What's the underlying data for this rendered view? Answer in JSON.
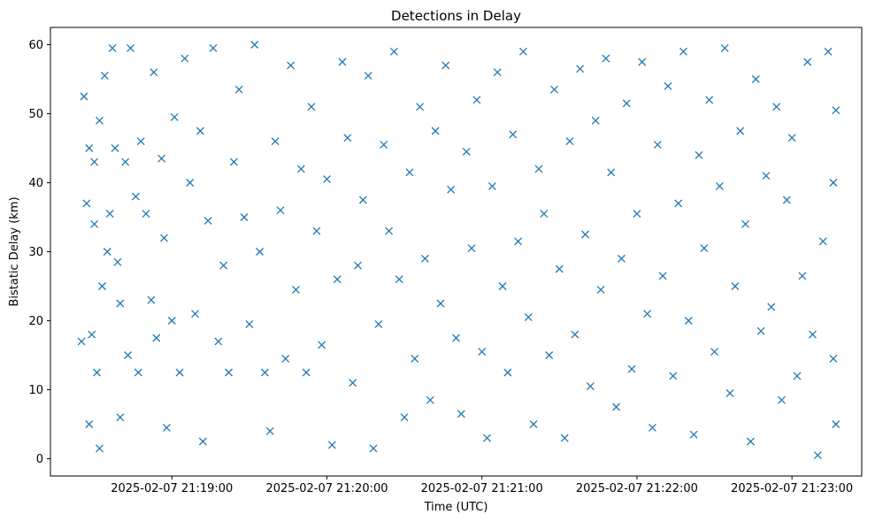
{
  "chart_data": {
    "type": "scatter",
    "title": "Detections in Delay",
    "xlabel": "Time (UTC)",
    "ylabel": "Bistatic Delay (km)",
    "x_is_datetime": true,
    "xlim": [
      "2025-02-07 21:18:13",
      "2025-02-07 21:23:27"
    ],
    "ylim": [
      -2.5,
      62.5
    ],
    "xticks": [
      "2025-02-07 21:19:00",
      "2025-02-07 21:20:00",
      "2025-02-07 21:21:00",
      "2025-02-07 21:22:00",
      "2025-02-07 21:23:00"
    ],
    "yticks": [
      0,
      10,
      20,
      30,
      40,
      50,
      60
    ],
    "marker": "x",
    "color": "#1f77b4",
    "grid": false,
    "legend": "none",
    "series": [
      {
        "points": [
          [
            "2025-02-07 21:18:25",
            17.0
          ],
          [
            "2025-02-07 21:18:26",
            52.5
          ],
          [
            "2025-02-07 21:18:27",
            37.0
          ],
          [
            "2025-02-07 21:18:28",
            45.0
          ],
          [
            "2025-02-07 21:18:28",
            5.0
          ],
          [
            "2025-02-07 21:18:29",
            18.0
          ],
          [
            "2025-02-07 21:18:30",
            43.0
          ],
          [
            "2025-02-07 21:18:30",
            34.0
          ],
          [
            "2025-02-07 21:18:31",
            12.5
          ],
          [
            "2025-02-07 21:18:32",
            49.0
          ],
          [
            "2025-02-07 21:18:32",
            1.5
          ],
          [
            "2025-02-07 21:18:33",
            25.0
          ],
          [
            "2025-02-07 21:18:34",
            55.5
          ],
          [
            "2025-02-07 21:18:35",
            30.0
          ],
          [
            "2025-02-07 21:18:36",
            35.5
          ],
          [
            "2025-02-07 21:18:37",
            59.5
          ],
          [
            "2025-02-07 21:18:38",
            45.0
          ],
          [
            "2025-02-07 21:18:39",
            28.5
          ],
          [
            "2025-02-07 21:18:40",
            22.5
          ],
          [
            "2025-02-07 21:18:40",
            6.0
          ],
          [
            "2025-02-07 21:18:42",
            43.0
          ],
          [
            "2025-02-07 21:18:43",
            15.0
          ],
          [
            "2025-02-07 21:18:44",
            59.5
          ],
          [
            "2025-02-07 21:18:46",
            38.0
          ],
          [
            "2025-02-07 21:18:47",
            12.5
          ],
          [
            "2025-02-07 21:18:48",
            46.0
          ],
          [
            "2025-02-07 21:18:50",
            35.5
          ],
          [
            "2025-02-07 21:18:52",
            23.0
          ],
          [
            "2025-02-07 21:18:53",
            56.0
          ],
          [
            "2025-02-07 21:18:54",
            17.5
          ],
          [
            "2025-02-07 21:18:56",
            43.5
          ],
          [
            "2025-02-07 21:18:57",
            32.0
          ],
          [
            "2025-02-07 21:18:58",
            4.5
          ],
          [
            "2025-02-07 21:19:00",
            20.0
          ],
          [
            "2025-02-07 21:19:01",
            49.5
          ],
          [
            "2025-02-07 21:19:03",
            12.5
          ],
          [
            "2025-02-07 21:19:05",
            58.0
          ],
          [
            "2025-02-07 21:19:07",
            40.0
          ],
          [
            "2025-02-07 21:19:09",
            21.0
          ],
          [
            "2025-02-07 21:19:11",
            47.5
          ],
          [
            "2025-02-07 21:19:12",
            2.5
          ],
          [
            "2025-02-07 21:19:14",
            34.5
          ],
          [
            "2025-02-07 21:19:16",
            59.5
          ],
          [
            "2025-02-07 21:19:18",
            17.0
          ],
          [
            "2025-02-07 21:19:20",
            28.0
          ],
          [
            "2025-02-07 21:19:22",
            12.5
          ],
          [
            "2025-02-07 21:19:24",
            43.0
          ],
          [
            "2025-02-07 21:19:26",
            53.5
          ],
          [
            "2025-02-07 21:19:28",
            35.0
          ],
          [
            "2025-02-07 21:19:30",
            19.5
          ],
          [
            "2025-02-07 21:19:32",
            60.0
          ],
          [
            "2025-02-07 21:19:34",
            30.0
          ],
          [
            "2025-02-07 21:19:36",
            12.5
          ],
          [
            "2025-02-07 21:19:38",
            4.0
          ],
          [
            "2025-02-07 21:19:40",
            46.0
          ],
          [
            "2025-02-07 21:19:42",
            36.0
          ],
          [
            "2025-02-07 21:19:44",
            14.5
          ],
          [
            "2025-02-07 21:19:46",
            57.0
          ],
          [
            "2025-02-07 21:19:48",
            24.5
          ],
          [
            "2025-02-07 21:19:50",
            42.0
          ],
          [
            "2025-02-07 21:19:52",
            12.5
          ],
          [
            "2025-02-07 21:19:54",
            51.0
          ],
          [
            "2025-02-07 21:19:56",
            33.0
          ],
          [
            "2025-02-07 21:19:58",
            16.5
          ],
          [
            "2025-02-07 21:20:00",
            40.5
          ],
          [
            "2025-02-07 21:20:02",
            2.0
          ],
          [
            "2025-02-07 21:20:04",
            26.0
          ],
          [
            "2025-02-07 21:20:06",
            57.5
          ],
          [
            "2025-02-07 21:20:08",
            46.5
          ],
          [
            "2025-02-07 21:20:10",
            11.0
          ],
          [
            "2025-02-07 21:20:12",
            28.0
          ],
          [
            "2025-02-07 21:20:14",
            37.5
          ],
          [
            "2025-02-07 21:20:16",
            55.5
          ],
          [
            "2025-02-07 21:20:18",
            1.5
          ],
          [
            "2025-02-07 21:20:20",
            19.5
          ],
          [
            "2025-02-07 21:20:22",
            45.5
          ],
          [
            "2025-02-07 21:20:24",
            33.0
          ],
          [
            "2025-02-07 21:20:26",
            59.0
          ],
          [
            "2025-02-07 21:20:28",
            26.0
          ],
          [
            "2025-02-07 21:20:30",
            6.0
          ],
          [
            "2025-02-07 21:20:32",
            41.5
          ],
          [
            "2025-02-07 21:20:34",
            14.5
          ],
          [
            "2025-02-07 21:20:36",
            51.0
          ],
          [
            "2025-02-07 21:20:38",
            29.0
          ],
          [
            "2025-02-07 21:20:40",
            8.5
          ],
          [
            "2025-02-07 21:20:42",
            47.5
          ],
          [
            "2025-02-07 21:20:44",
            22.5
          ],
          [
            "2025-02-07 21:20:46",
            57.0
          ],
          [
            "2025-02-07 21:20:48",
            39.0
          ],
          [
            "2025-02-07 21:20:50",
            17.5
          ],
          [
            "2025-02-07 21:20:52",
            6.5
          ],
          [
            "2025-02-07 21:20:54",
            44.5
          ],
          [
            "2025-02-07 21:20:56",
            30.5
          ],
          [
            "2025-02-07 21:20:58",
            52.0
          ],
          [
            "2025-02-07 21:21:00",
            15.5
          ],
          [
            "2025-02-07 21:21:02",
            3.0
          ],
          [
            "2025-02-07 21:21:04",
            39.5
          ],
          [
            "2025-02-07 21:21:06",
            56.0
          ],
          [
            "2025-02-07 21:21:08",
            25.0
          ],
          [
            "2025-02-07 21:21:10",
            12.5
          ],
          [
            "2025-02-07 21:21:12",
            47.0
          ],
          [
            "2025-02-07 21:21:14",
            31.5
          ],
          [
            "2025-02-07 21:21:16",
            59.0
          ],
          [
            "2025-02-07 21:21:18",
            20.5
          ],
          [
            "2025-02-07 21:21:20",
            5.0
          ],
          [
            "2025-02-07 21:21:22",
            42.0
          ],
          [
            "2025-02-07 21:21:24",
            35.5
          ],
          [
            "2025-02-07 21:21:26",
            15.0
          ],
          [
            "2025-02-07 21:21:28",
            53.5
          ],
          [
            "2025-02-07 21:21:30",
            27.5
          ],
          [
            "2025-02-07 21:21:32",
            3.0
          ],
          [
            "2025-02-07 21:21:34",
            46.0
          ],
          [
            "2025-02-07 21:21:36",
            18.0
          ],
          [
            "2025-02-07 21:21:38",
            56.5
          ],
          [
            "2025-02-07 21:21:40",
            32.5
          ],
          [
            "2025-02-07 21:21:42",
            10.5
          ],
          [
            "2025-02-07 21:21:44",
            49.0
          ],
          [
            "2025-02-07 21:21:46",
            24.5
          ],
          [
            "2025-02-07 21:21:48",
            58.0
          ],
          [
            "2025-02-07 21:21:50",
            41.5
          ],
          [
            "2025-02-07 21:21:52",
            7.5
          ],
          [
            "2025-02-07 21:21:54",
            29.0
          ],
          [
            "2025-02-07 21:21:56",
            51.5
          ],
          [
            "2025-02-07 21:21:58",
            13.0
          ],
          [
            "2025-02-07 21:22:00",
            35.5
          ],
          [
            "2025-02-07 21:22:02",
            57.5
          ],
          [
            "2025-02-07 21:22:04",
            21.0
          ],
          [
            "2025-02-07 21:22:06",
            4.5
          ],
          [
            "2025-02-07 21:22:08",
            45.5
          ],
          [
            "2025-02-07 21:22:10",
            26.5
          ],
          [
            "2025-02-07 21:22:12",
            54.0
          ],
          [
            "2025-02-07 21:22:14",
            12.0
          ],
          [
            "2025-02-07 21:22:16",
            37.0
          ],
          [
            "2025-02-07 21:22:18",
            59.0
          ],
          [
            "2025-02-07 21:22:20",
            20.0
          ],
          [
            "2025-02-07 21:22:22",
            3.5
          ],
          [
            "2025-02-07 21:22:24",
            44.0
          ],
          [
            "2025-02-07 21:22:26",
            30.5
          ],
          [
            "2025-02-07 21:22:28",
            52.0
          ],
          [
            "2025-02-07 21:22:30",
            15.5
          ],
          [
            "2025-02-07 21:22:32",
            39.5
          ],
          [
            "2025-02-07 21:22:34",
            59.5
          ],
          [
            "2025-02-07 21:22:36",
            9.5
          ],
          [
            "2025-02-07 21:22:38",
            25.0
          ],
          [
            "2025-02-07 21:22:40",
            47.5
          ],
          [
            "2025-02-07 21:22:42",
            34.0
          ],
          [
            "2025-02-07 21:22:44",
            2.5
          ],
          [
            "2025-02-07 21:22:46",
            55.0
          ],
          [
            "2025-02-07 21:22:48",
            18.5
          ],
          [
            "2025-02-07 21:22:50",
            41.0
          ],
          [
            "2025-02-07 21:22:52",
            22.0
          ],
          [
            "2025-02-07 21:22:54",
            51.0
          ],
          [
            "2025-02-07 21:22:56",
            8.5
          ],
          [
            "2025-02-07 21:22:58",
            37.5
          ],
          [
            "2025-02-07 21:23:00",
            46.5
          ],
          [
            "2025-02-07 21:23:02",
            12.0
          ],
          [
            "2025-02-07 21:23:04",
            26.5
          ],
          [
            "2025-02-07 21:23:06",
            57.5
          ],
          [
            "2025-02-07 21:23:08",
            18.0
          ],
          [
            "2025-02-07 21:23:10",
            0.5
          ],
          [
            "2025-02-07 21:23:12",
            31.5
          ],
          [
            "2025-02-07 21:23:14",
            59.0
          ],
          [
            "2025-02-07 21:23:16",
            14.5
          ],
          [
            "2025-02-07 21:23:16",
            40.0
          ],
          [
            "2025-02-07 21:23:17",
            50.5
          ],
          [
            "2025-02-07 21:23:17",
            5.0
          ]
        ]
      }
    ]
  }
}
